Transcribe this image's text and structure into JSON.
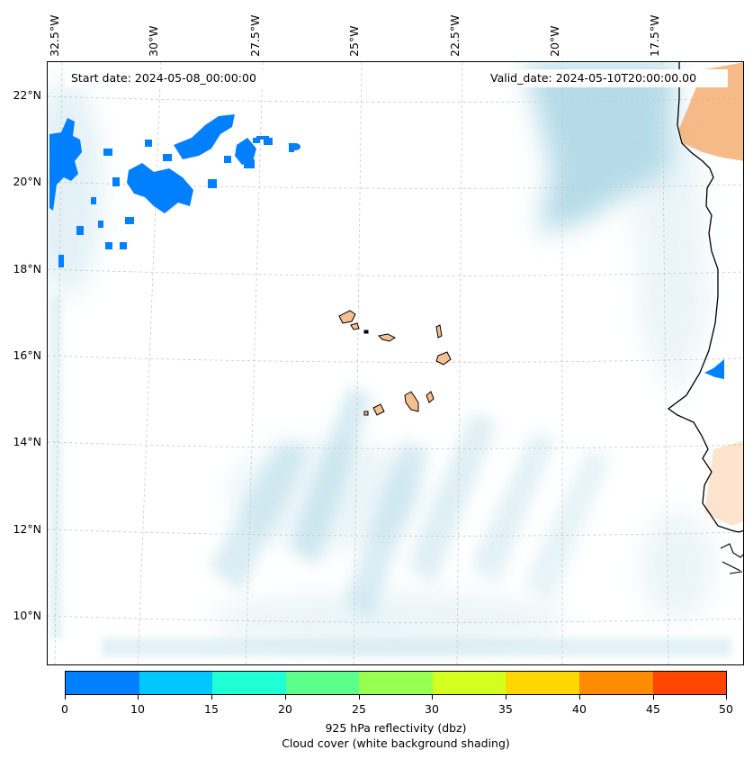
{
  "map": {
    "start_date": "Start date: 2024-05-08_00:00:00",
    "valid_date": "Valid_date: 2024-05-10T20:00:00.00",
    "lon_labels": [
      "32.5°W",
      "30°W",
      "27.5°W",
      "25°W",
      "22.5°W",
      "20°W",
      "17.5°W"
    ],
    "lat_labels": [
      "22°N",
      "20°N",
      "18°N",
      "16°N",
      "14°N",
      "12°N",
      "10°N"
    ],
    "region": "Cape Verde Islands and West African coast",
    "colors": {
      "cloud_shading": "#add8e6",
      "land_fill": "#f4a460",
      "reflectivity_low": "#0080ff"
    }
  },
  "colorbar": {
    "ticks": [
      "0",
      "10",
      "15",
      "20",
      "25",
      "30",
      "35",
      "40",
      "45",
      "50"
    ],
    "colors": [
      "#0080ff",
      "#00c8ff",
      "#1effd6",
      "#5cff8a",
      "#96ff50",
      "#d2ff1e",
      "#ffd700",
      "#ff8c00",
      "#ff4500"
    ],
    "label_line1": "925 hPa reflectivity (dbz)",
    "label_line2": "Cloud cover (white background shading)"
  }
}
